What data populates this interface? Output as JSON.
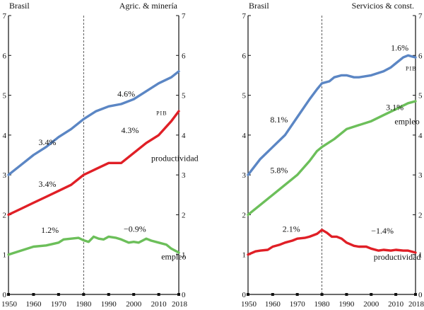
{
  "chart_data": [
    {
      "type": "line",
      "country": "Brasil",
      "sector": "Agric. & minería",
      "x_range": [
        1950,
        2018
      ],
      "ylim": [
        0,
        7
      ],
      "x_ticks": [
        1950,
        1960,
        1970,
        1980,
        1990,
        2000,
        2010,
        2018
      ],
      "y_ticks": [
        0,
        1,
        2,
        3,
        4,
        5,
        6,
        7
      ],
      "vline_x": 1980,
      "grid": false,
      "series": [
        {
          "key": "pib",
          "color": "#5b86c4",
          "x": [
            1950,
            1955,
            1960,
            1965,
            1970,
            1975,
            1980,
            1985,
            1990,
            1995,
            2000,
            2005,
            2010,
            2015,
            2018
          ],
          "y": [
            3.0,
            3.25,
            3.5,
            3.7,
            3.95,
            4.15,
            4.4,
            4.6,
            4.72,
            4.78,
            4.9,
            5.1,
            5.3,
            5.45,
            5.6
          ]
        },
        {
          "key": "productividad",
          "color": "#e01f26",
          "x": [
            1950,
            1955,
            1960,
            1965,
            1970,
            1975,
            1980,
            1985,
            1990,
            1995,
            2000,
            2005,
            2010,
            2015,
            2018
          ],
          "y": [
            2.0,
            2.15,
            2.3,
            2.45,
            2.6,
            2.75,
            3.0,
            3.15,
            3.3,
            3.3,
            3.55,
            3.8,
            4.0,
            4.35,
            4.6
          ]
        },
        {
          "key": "empleo",
          "color": "#6cbf5a",
          "x": [
            1950,
            1955,
            1960,
            1965,
            1970,
            1972,
            1975,
            1978,
            1980,
            1982,
            1984,
            1986,
            1988,
            1990,
            1993,
            1995,
            1998,
            2000,
            2002,
            2005,
            2007,
            2010,
            2013,
            2015,
            2018
          ],
          "y": [
            1.0,
            1.1,
            1.2,
            1.23,
            1.3,
            1.38,
            1.4,
            1.42,
            1.36,
            1.32,
            1.45,
            1.4,
            1.38,
            1.45,
            1.42,
            1.38,
            1.3,
            1.32,
            1.3,
            1.4,
            1.35,
            1.3,
            1.25,
            1.15,
            1.05
          ]
        }
      ],
      "annotations": [
        {
          "text": "3.4%",
          "x": 1962,
          "y": 3.75,
          "style": "ann"
        },
        {
          "text": "3.4%",
          "x": 1962,
          "y": 2.7,
          "style": "ann"
        },
        {
          "text": "1.2%",
          "x": 1963,
          "y": 1.55,
          "style": "ann"
        },
        {
          "text": "4.3%",
          "x": 1995,
          "y": 4.05,
          "style": "ann"
        },
        {
          "text": "productividad",
          "x": 2007,
          "y": 3.35,
          "style": "ann"
        },
        {
          "text": "4.6%",
          "x": 1993.5,
          "y": 4.97,
          "style": "ann"
        },
        {
          "text": "PIB",
          "x": 2009,
          "y": 4.5,
          "style": "ann-sc"
        },
        {
          "text": "−0.9%",
          "x": 1996,
          "y": 1.57,
          "style": "ann"
        },
        {
          "text": "empleo",
          "x": 2011,
          "y": 0.88,
          "style": "ann"
        }
      ]
    },
    {
      "type": "line",
      "country": "Brasil",
      "sector": "Servicios & const.",
      "x_range": [
        1950,
        2018
      ],
      "ylim": [
        0,
        7
      ],
      "x_ticks": [
        1950,
        1960,
        1970,
        1980,
        1990,
        2000,
        2010,
        2018
      ],
      "y_ticks": [
        0,
        1,
        2,
        3,
        4,
        5,
        6,
        7
      ],
      "vline_x": 1980,
      "grid": false,
      "series": [
        {
          "key": "pib",
          "color": "#5b86c4",
          "x": [
            1950,
            1955,
            1960,
            1965,
            1970,
            1975,
            1978,
            1980,
            1983,
            1985,
            1988,
            1990,
            1993,
            1995,
            2000,
            2005,
            2008,
            2010,
            2013,
            2015,
            2018
          ],
          "y": [
            3.0,
            3.4,
            3.7,
            4.0,
            4.45,
            4.9,
            5.15,
            5.3,
            5.35,
            5.45,
            5.5,
            5.5,
            5.45,
            5.45,
            5.5,
            5.6,
            5.7,
            5.8,
            5.95,
            6.0,
            5.95
          ]
        },
        {
          "key": "empleo",
          "color": "#6cbf5a",
          "x": [
            1950,
            1955,
            1960,
            1965,
            1970,
            1975,
            1978,
            1980,
            1985,
            1990,
            1995,
            2000,
            2005,
            2010,
            2015,
            2018
          ],
          "y": [
            2.0,
            2.25,
            2.5,
            2.75,
            3.0,
            3.35,
            3.6,
            3.7,
            3.9,
            4.15,
            4.25,
            4.35,
            4.5,
            4.65,
            4.8,
            4.85
          ]
        },
        {
          "key": "productividad",
          "color": "#e01f26",
          "x": [
            1950,
            1953,
            1955,
            1958,
            1960,
            1963,
            1965,
            1968,
            1970,
            1973,
            1975,
            1978,
            1980,
            1982,
            1984,
            1986,
            1988,
            1990,
            1993,
            1995,
            1998,
            2000,
            2003,
            2005,
            2008,
            2010,
            2013,
            2015,
            2018
          ],
          "y": [
            1.0,
            1.08,
            1.1,
            1.12,
            1.2,
            1.25,
            1.3,
            1.35,
            1.4,
            1.42,
            1.45,
            1.52,
            1.62,
            1.55,
            1.45,
            1.45,
            1.4,
            1.3,
            1.22,
            1.2,
            1.2,
            1.15,
            1.1,
            1.12,
            1.1,
            1.12,
            1.1,
            1.1,
            1.05
          ]
        }
      ],
      "annotations": [
        {
          "text": "8.1%",
          "x": 1959,
          "y": 4.32,
          "style": "ann"
        },
        {
          "text": "5.8%",
          "x": 1959,
          "y": 3.05,
          "style": "ann"
        },
        {
          "text": "2.1%",
          "x": 1964,
          "y": 1.57,
          "style": "ann"
        },
        {
          "text": "1.6%",
          "x": 2008,
          "y": 6.12,
          "style": "ann"
        },
        {
          "text": "PIB",
          "x": 2014,
          "y": 5.62,
          "style": "ann-sc"
        },
        {
          "text": "3.1%",
          "x": 2006,
          "y": 4.63,
          "style": "ann"
        },
        {
          "text": "empleo",
          "x": 2009.5,
          "y": 4.27,
          "style": "ann"
        },
        {
          "text": "−1.4%",
          "x": 2000,
          "y": 1.53,
          "style": "ann"
        },
        {
          "text": "productividad",
          "x": 2001,
          "y": 0.87,
          "style": "ann"
        }
      ]
    }
  ]
}
